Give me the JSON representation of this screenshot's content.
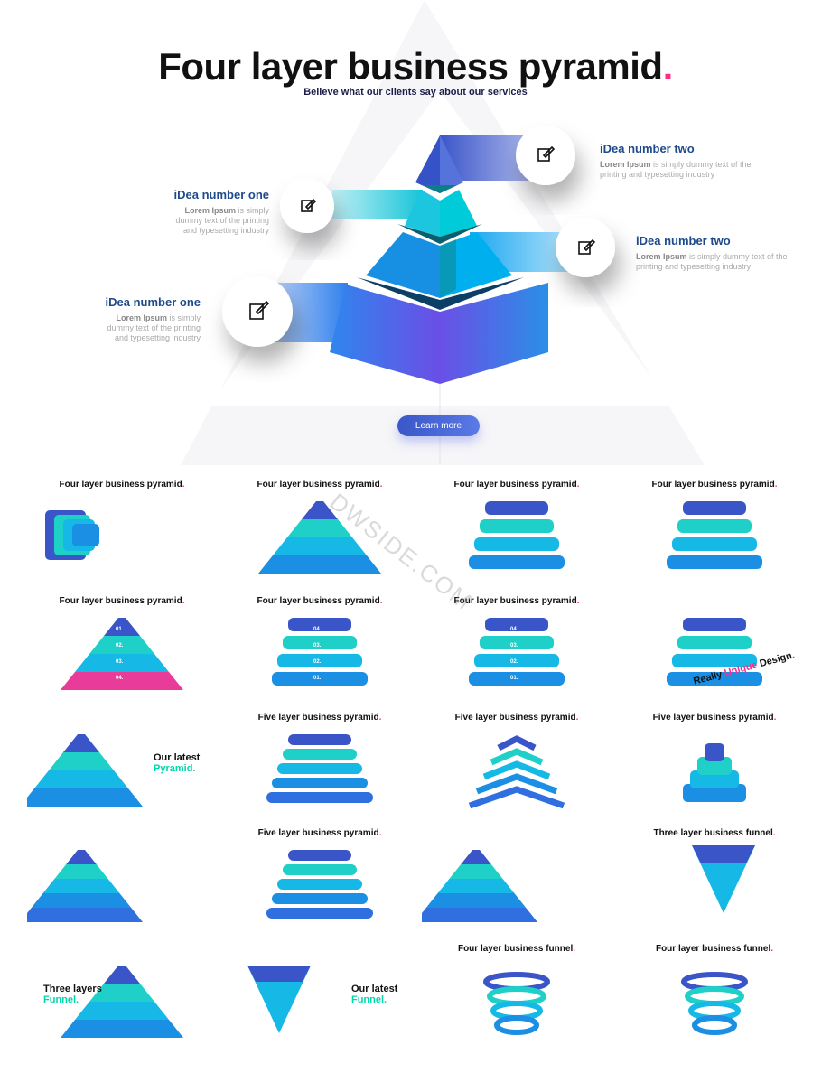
{
  "hero": {
    "title": "Four layer business pyramid",
    "title_dot": ".",
    "subtitle": "Believe what our clients say about our services",
    "ideas": [
      {
        "title": "iDea number two",
        "lead": "Lorem Ipsum",
        "body": " is simply dummy text of the printing and typesetting industry"
      },
      {
        "title": "iDea number one",
        "lead": "Lorem Ipsum",
        "body": " is simply dummy text of the printing and typesetting industry"
      },
      {
        "title": "iDea number two",
        "lead": "Lorem Ipsum",
        "body": " is simply dummy text of the printing and typesetting industry"
      },
      {
        "title": "iDea number one",
        "lead": "Lorem Ipsum",
        "body": " is simply dummy text of the printing and typesetting industry"
      }
    ],
    "icon": "edit-icon",
    "learn_more": "Learn more",
    "colors": {
      "accent": "#ff2d8a",
      "title_blue": "#1e4a8c",
      "button": "#3a56c8"
    }
  },
  "watermark": "DWSIDE.COM",
  "thumbnails": [
    {
      "title": "Four layer business pyramid",
      "shape": "blocks"
    },
    {
      "title": "Four layer business pyramid",
      "shape": "pyramid3d"
    },
    {
      "title": "Four layer business pyramid",
      "shape": "steps"
    },
    {
      "title": "Four layer business pyramid",
      "shape": "pills"
    },
    {
      "title": "Four layer business pyramid",
      "shape": "pyramid-pink",
      "labels": [
        "01.",
        "02.",
        "03.",
        "04."
      ]
    },
    {
      "title": "Four layer business pyramid",
      "shape": "arrows",
      "labels": [
        "04.",
        "03.",
        "02.",
        "01."
      ]
    },
    {
      "title": "Four layer business pyramid",
      "shape": "arrows3d",
      "labels": [
        "04.",
        "03.",
        "02.",
        "01."
      ]
    },
    {
      "title": "",
      "shape": "ribbons",
      "big": [
        "Really ",
        "Unique",
        " Design",
        "."
      ]
    },
    {
      "title": "",
      "shape": "rounded-pyramid",
      "big": [
        "Our latest",
        "Pyramid."
      ]
    },
    {
      "title": "Five layer business pyramid",
      "shape": "arrows5"
    },
    {
      "title": "Five layer business pyramid",
      "shape": "chevrons"
    },
    {
      "title": "Five layer business pyramid",
      "shape": "cube-stack"
    },
    {
      "title": "",
      "shape": "rounded-pyramid5"
    },
    {
      "title": "Five layer business pyramid",
      "shape": "pills5"
    },
    {
      "title": "",
      "shape": "rounded-pyramid5"
    },
    {
      "title": "Three layer business funnel",
      "shape": "funnel3"
    },
    {
      "title": "",
      "shape": "circles-funnel",
      "big": [
        "Three layers",
        "Funnel."
      ]
    },
    {
      "title": "",
      "shape": "inverted",
      "big": [
        "Our latest",
        "Funnel."
      ]
    },
    {
      "title": "Four layer business funnel",
      "shape": "rings"
    },
    {
      "title": "Four layer business funnel",
      "shape": "rings"
    }
  ]
}
